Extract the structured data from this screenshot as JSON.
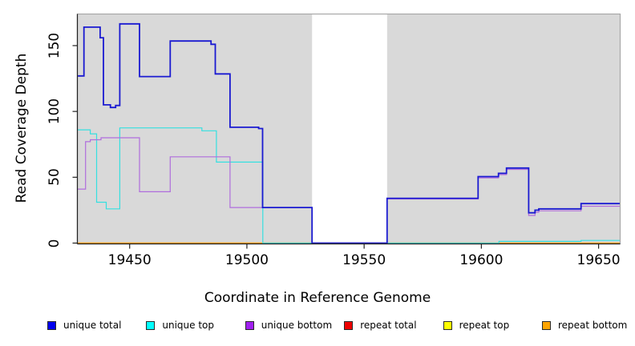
{
  "chart_data": {
    "type": "line",
    "title": "",
    "xlabel": "Coordinate in Reference Genome",
    "ylabel": "Read Coverage Depth",
    "xlim": [
      19427.7,
      19659.2
    ],
    "ylim": [
      0,
      174
    ],
    "xticks": [
      19450,
      19500,
      19550,
      19600,
      19650
    ],
    "yticks": [
      0,
      50,
      100,
      150
    ],
    "grid": false,
    "legend_position": "bottom",
    "plot_bg_color": "#d9d9d9",
    "frame_color": "#a8a8a8",
    "axis_color": "#222222",
    "gap_band": {
      "x_start": 19527.8,
      "x_end": 19559.8,
      "color": "#ffffff"
    },
    "draw_order": [
      3,
      4,
      5,
      1,
      2,
      0
    ],
    "series": [
      {
        "name": "unique total",
        "color": "#1a1ad1",
        "swatch_color": "#0000ee",
        "line_width": 1.8,
        "step_points": [
          [
            19427.7,
            127
          ],
          [
            19430.5,
            164
          ],
          [
            19437.4,
            156
          ],
          [
            19438.8,
            105
          ],
          [
            19441.8,
            103
          ],
          [
            19444,
            104.5
          ],
          [
            19445.8,
            166.5
          ],
          [
            19454.2,
            126.5
          ],
          [
            19467.3,
            153.5
          ],
          [
            19484.7,
            151
          ],
          [
            19486.5,
            128.5
          ],
          [
            19492.8,
            88
          ],
          [
            19505,
            87
          ],
          [
            19506.7,
            27
          ],
          [
            19527.8,
            0
          ],
          [
            19559.8,
            34
          ],
          [
            19598.6,
            50.5
          ],
          [
            19607.3,
            53
          ],
          [
            19610.7,
            57
          ],
          [
            19620.2,
            23
          ],
          [
            19622.9,
            25
          ],
          [
            19624.5,
            26
          ],
          [
            19642.5,
            30
          ]
        ]
      },
      {
        "name": "unique top",
        "color": "#35e0e0",
        "swatch_color": "#00ffff",
        "line_width": 1.2,
        "step_points": [
          [
            19427.7,
            86
          ],
          [
            19433.2,
            83
          ],
          [
            19435.9,
            31
          ],
          [
            19440,
            26
          ],
          [
            19445.8,
            87.5
          ],
          [
            19480.8,
            85.3
          ],
          [
            19487,
            61.5
          ],
          [
            19506.8,
            0
          ],
          [
            19607.5,
            1.3
          ],
          [
            19642.5,
            2
          ]
        ]
      },
      {
        "name": "unique bottom",
        "color": "#b06ddd",
        "swatch_color": "#a020f0",
        "line_width": 1.2,
        "step_points": [
          [
            19427.7,
            41
          ],
          [
            19431.2,
            77
          ],
          [
            19433.2,
            78.5
          ],
          [
            19437.8,
            80
          ],
          [
            19454.2,
            39
          ],
          [
            19467.3,
            65.5
          ],
          [
            19492.8,
            27
          ],
          [
            19527.8,
            0
          ],
          [
            19559.8,
            33.5
          ],
          [
            19598.6,
            49.5
          ],
          [
            19607.3,
            52
          ],
          [
            19610.7,
            56
          ],
          [
            19620.2,
            21
          ],
          [
            19622.9,
            23.5
          ],
          [
            19624.5,
            24.5
          ],
          [
            19642.5,
            28
          ]
        ]
      },
      {
        "name": "repeat total",
        "color": "#e00000",
        "swatch_color": "#ee0000",
        "line_width": 1.0,
        "step_points": [
          [
            19427.7,
            0
          ]
        ]
      },
      {
        "name": "repeat top",
        "color": "#f2f200",
        "swatch_color": "#ffff00",
        "line_width": 1.0,
        "step_points": [
          [
            19427.7,
            0
          ]
        ]
      },
      {
        "name": "repeat bottom",
        "color": "#ff9e00",
        "swatch_color": "#ffa500",
        "line_width": 1.5,
        "step_points": [
          [
            19427.7,
            0
          ]
        ]
      }
    ]
  }
}
